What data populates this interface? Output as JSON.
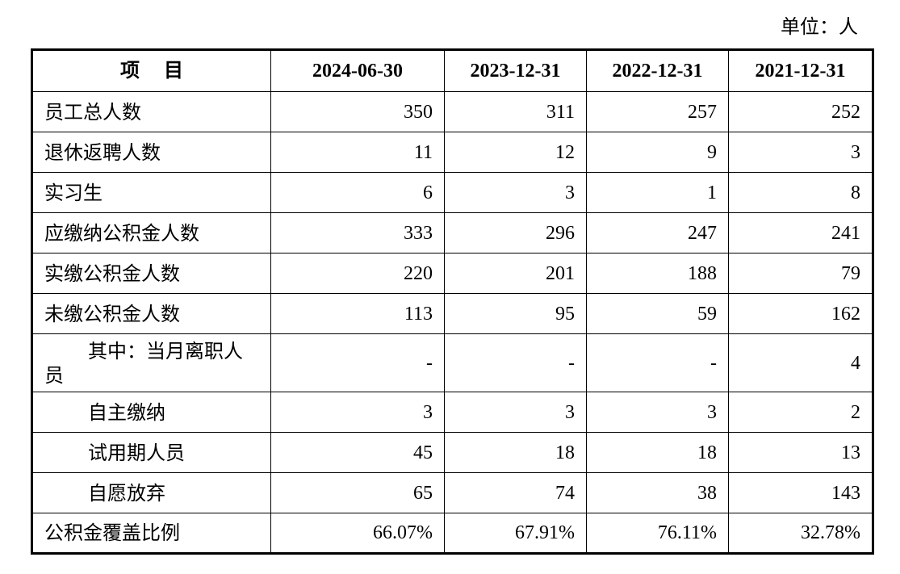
{
  "unit_label": "单位：人",
  "header": {
    "item_part1": "项",
    "item_part2": "目",
    "dates": [
      "2024-06-30",
      "2023-12-31",
      "2022-12-31",
      "2021-12-31"
    ]
  },
  "rows": [
    {
      "label": "员工总人数",
      "values": [
        "350",
        "311",
        "257",
        "252"
      ]
    },
    {
      "label": "退休返聘人数",
      "values": [
        "11",
        "12",
        "9",
        "3"
      ]
    },
    {
      "label": "实习生",
      "values": [
        "6",
        "3",
        "1",
        "8"
      ]
    },
    {
      "label": "应缴纳公积金人数",
      "values": [
        "333",
        "296",
        "247",
        "241"
      ]
    },
    {
      "label": "实缴公积金人数",
      "values": [
        "220",
        "201",
        "188",
        "79"
      ]
    },
    {
      "label": "未缴公积金人数",
      "values": [
        "113",
        "95",
        "59",
        "162"
      ]
    },
    {
      "label": "其中：当月离职人员",
      "values": [
        "-",
        "-",
        "-",
        "4"
      ]
    },
    {
      "label": "自主缴纳",
      "values": [
        "3",
        "3",
        "3",
        "2"
      ]
    },
    {
      "label": "试用期人员",
      "values": [
        "45",
        "18",
        "18",
        "13"
      ]
    },
    {
      "label": "自愿放弃",
      "values": [
        "65",
        "74",
        "38",
        "143"
      ]
    },
    {
      "label": "公积金覆盖比例",
      "values": [
        "66.07%",
        "67.91%",
        "76.11%",
        "32.78%"
      ]
    }
  ]
}
